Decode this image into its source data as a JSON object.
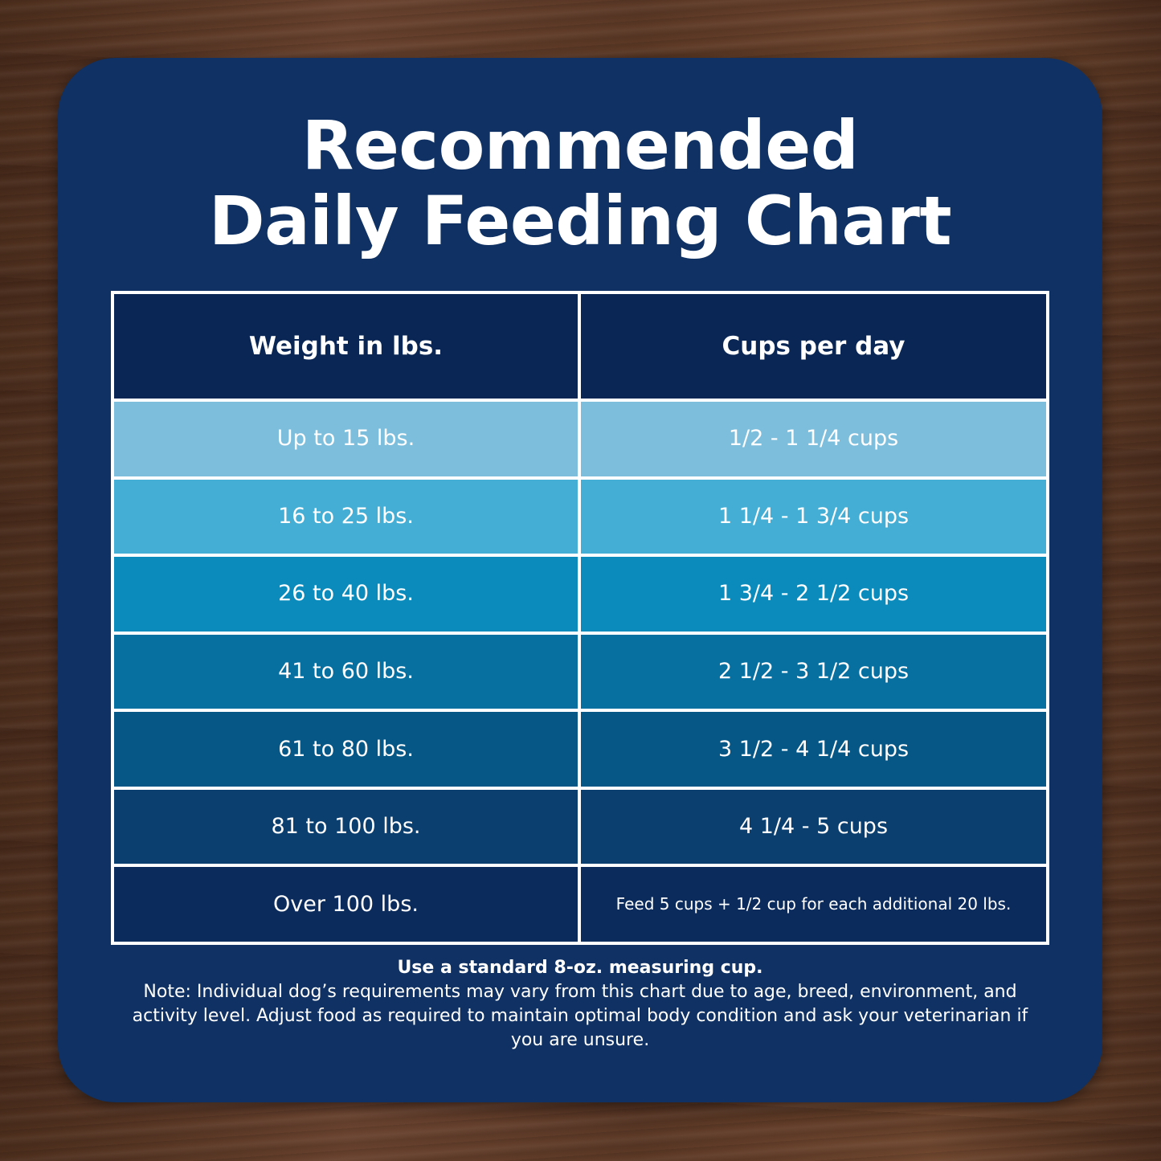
{
  "title": {
    "line1": "Recommended",
    "line2": "Daily Feeding Chart"
  },
  "table": {
    "headers": [
      "Weight in lbs.",
      "Cups per day"
    ],
    "rows": [
      {
        "weight": "Up to 15 lbs.",
        "cups": "1/2 - 1 1/4 cups",
        "color": "#7dbedc"
      },
      {
        "weight": "16 to 25 lbs.",
        "cups": "1 1/4 - 1 3/4 cups",
        "color": "#45aed4"
      },
      {
        "weight": "26 to 40 lbs.",
        "cups": "1 3/4 - 2 1/2 cups",
        "color": "#0a8bbc"
      },
      {
        "weight": "41 to 60 lbs.",
        "cups": "2 1/2 - 3 1/2 cups",
        "color": "#0870a1"
      },
      {
        "weight": "61 to 80 lbs.",
        "cups": "3 1/2 - 4 1/4 cups",
        "color": "#075786"
      },
      {
        "weight": "81 to 100 lbs.",
        "cups": "4 1/4 - 5 cups",
        "color": "#0b3f70"
      },
      {
        "weight": "Over 100 lbs.",
        "cups": "Feed 5 cups + 1/2 cup for each additional 20 lbs.",
        "color": "#0b2b5c"
      }
    ]
  },
  "footer": {
    "instruction": "Use a standard 8-oz. measuring cup.",
    "note": "Note: Individual dog’s requirements may vary from this chart due to age, breed, environment, and activity level. Adjust food as required to maintain optimal body condition and ask your veterinarian if you are unsure."
  },
  "colors": {
    "card_background": "#0f3163",
    "header_cell": "#0a2654",
    "grid_lines": "#ffffff"
  }
}
